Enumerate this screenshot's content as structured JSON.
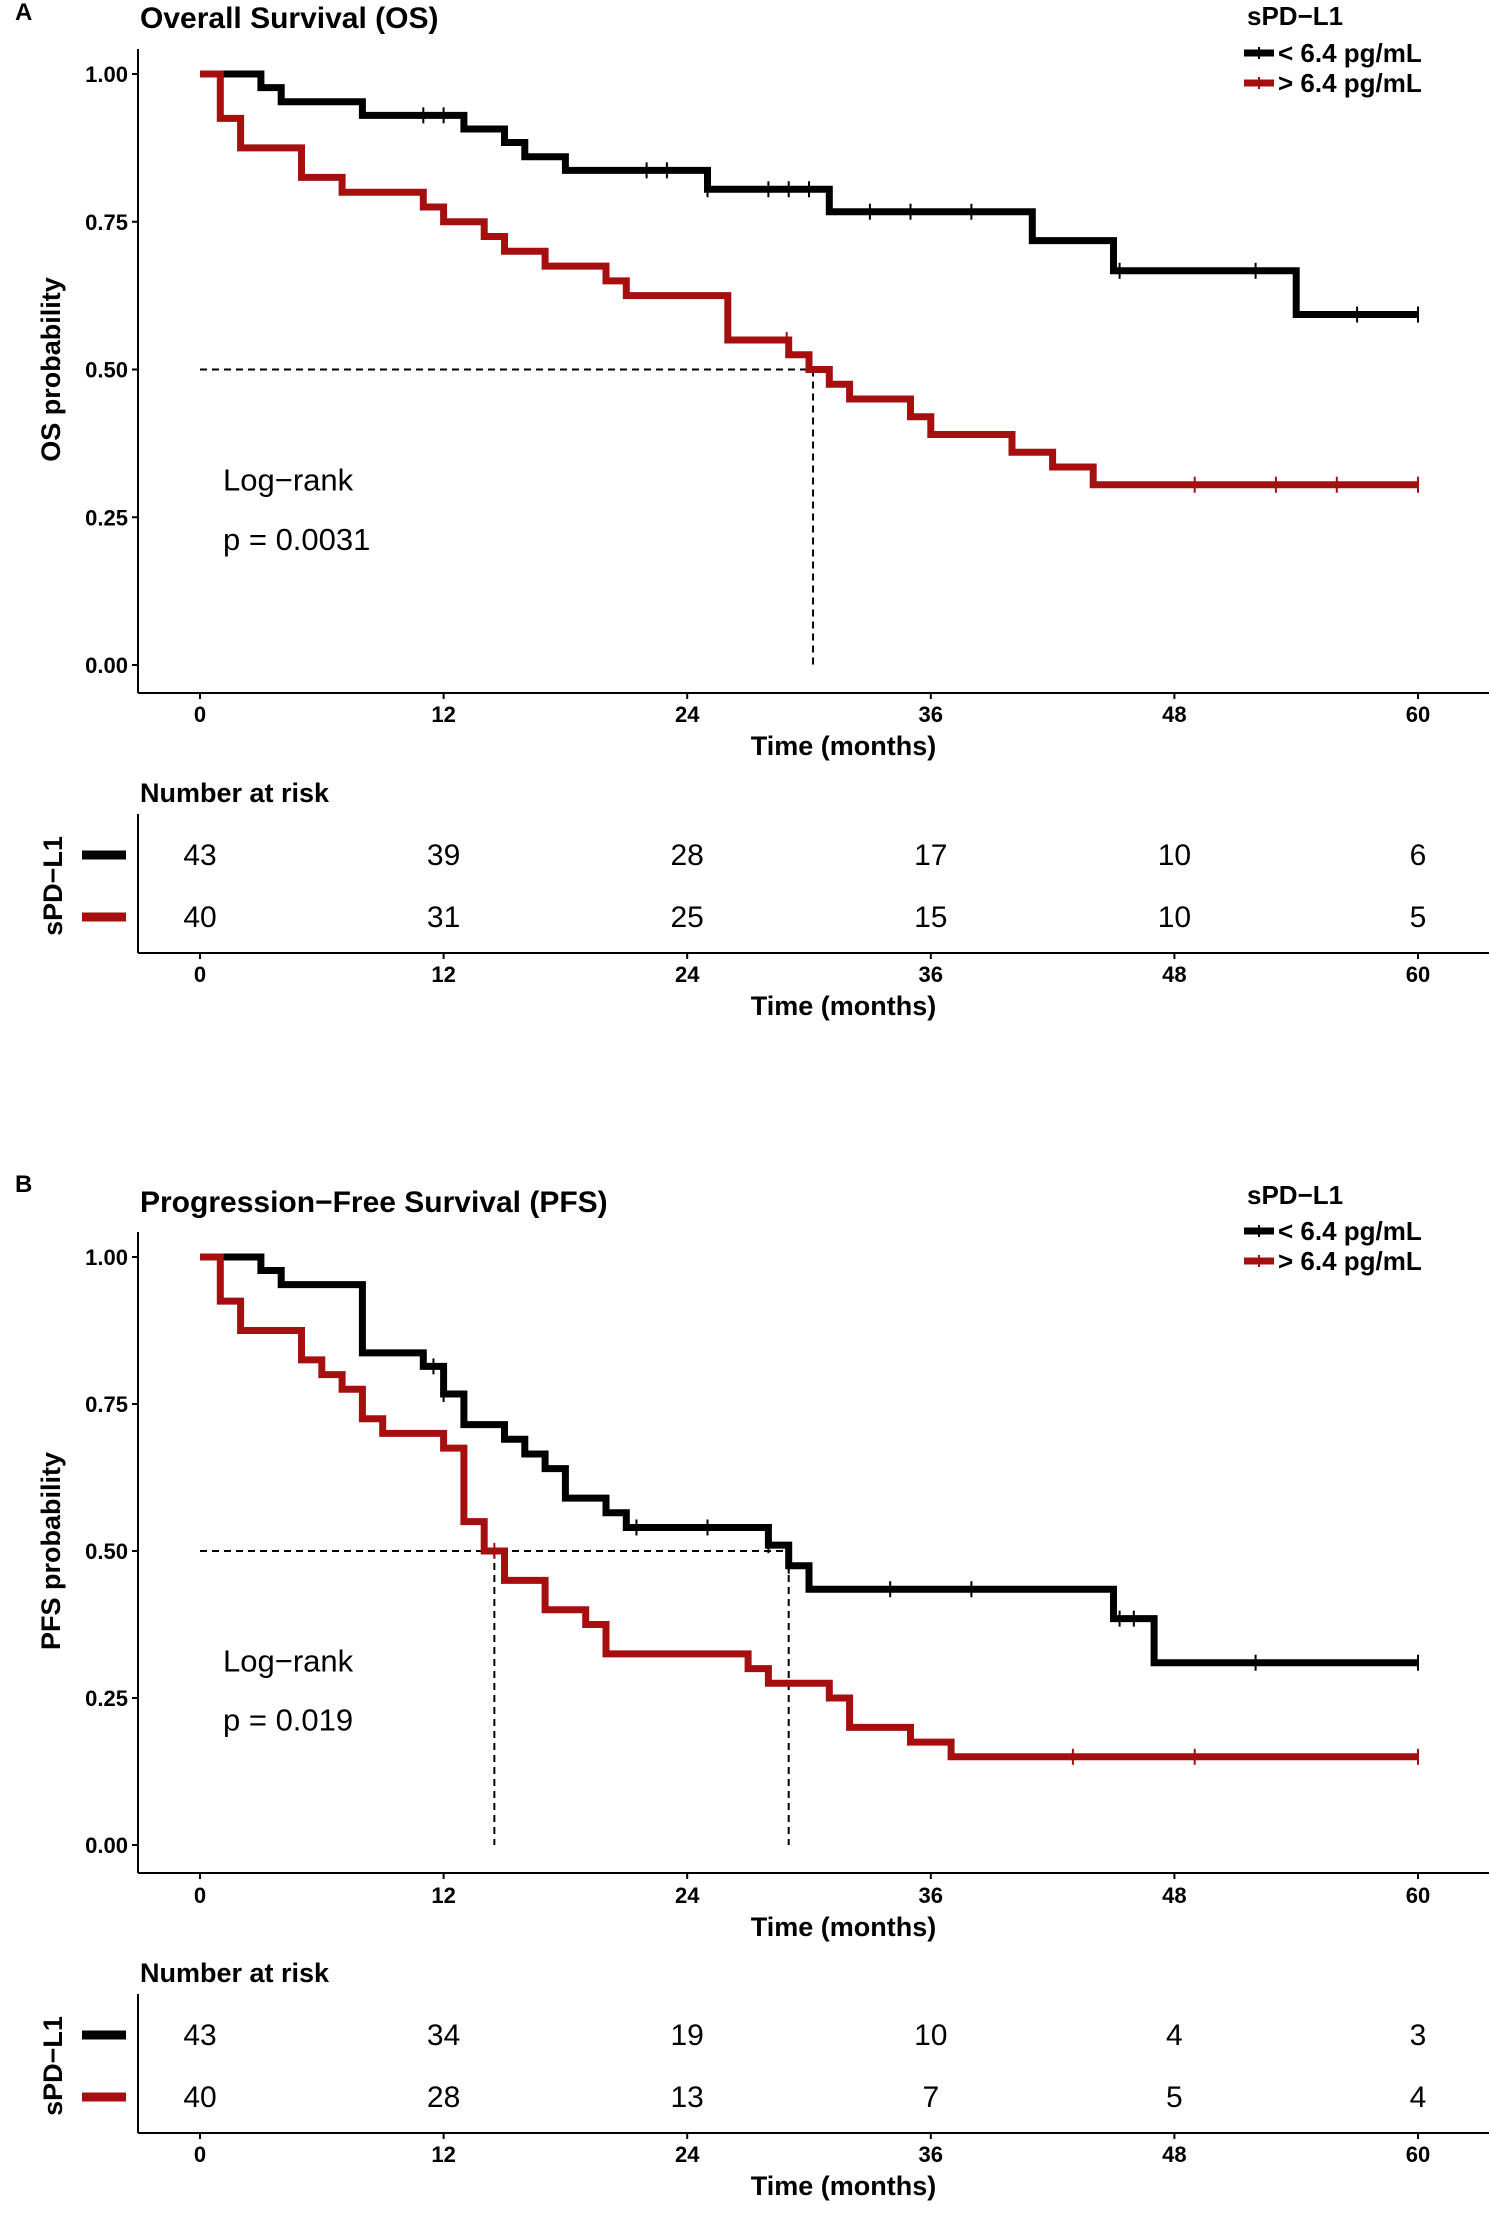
{
  "colors": {
    "low": "#000000",
    "high": "#a50f0f"
  },
  "legend_title": "sPD−L1",
  "legend_items": [
    "< 6.4 pg/mL",
    "> 6.4 pg/mL"
  ],
  "chart_data": [
    {
      "type": "line",
      "panel": "A",
      "title": "Overall Survival (OS)",
      "xlabel": "Time (months)",
      "ylabel": "OS probability",
      "xlim": [
        0,
        60
      ],
      "ylim": [
        0,
        1
      ],
      "xticks": [
        "0",
        "12",
        "24",
        "36",
        "48",
        "60"
      ],
      "yticks": [
        "0.00",
        "0.25",
        "0.50",
        "0.75",
        "1.00"
      ],
      "annotation": [
        "Log−rank",
        "p = 0.0031"
      ],
      "medians": [
        30.2
      ],
      "series": [
        {
          "name": "< 6.4 pg/mL",
          "steps": [
            [
              0,
              1
            ],
            [
              3,
              0.977
            ],
            [
              4,
              0.953
            ],
            [
              8,
              0.93
            ],
            [
              13,
              0.907
            ],
            [
              15,
              0.884
            ],
            [
              16,
              0.86
            ],
            [
              18,
              0.837
            ],
            [
              25,
              0.805
            ],
            [
              31,
              0.767
            ],
            [
              41,
              0.718
            ],
            [
              45,
              0.667
            ],
            [
              54,
              0.593
            ],
            [
              60,
              0.593
            ]
          ],
          "censored": [
            11,
            12,
            22,
            23,
            25,
            28,
            29,
            30,
            33,
            35,
            38,
            45.3,
            52,
            57,
            60
          ]
        },
        {
          "name": "> 6.4 pg/mL",
          "steps": [
            [
              0,
              1
            ],
            [
              1,
              0.925
            ],
            [
              2,
              0.875
            ],
            [
              5,
              0.825
            ],
            [
              7,
              0.8
            ],
            [
              11,
              0.775
            ],
            [
              12,
              0.75
            ],
            [
              14,
              0.725
            ],
            [
              15,
              0.7
            ],
            [
              17,
              0.675
            ],
            [
              20,
              0.65
            ],
            [
              21,
              0.625
            ],
            [
              26,
              0.55
            ],
            [
              29,
              0.525
            ],
            [
              30,
              0.5
            ],
            [
              31,
              0.475
            ],
            [
              32,
              0.45
            ],
            [
              35,
              0.42
            ],
            [
              36,
              0.39
            ],
            [
              40,
              0.36
            ],
            [
              42,
              0.335
            ],
            [
              44,
              0.305
            ],
            [
              60,
              0.305
            ]
          ],
          "censored": [
            28.9,
            49,
            53,
            56,
            60
          ]
        }
      ],
      "risk_table": {
        "title": "Number at risk",
        "strata_label": "sPD−L1",
        "rows": [
          [
            "43",
            "39",
            "28",
            "17",
            "10",
            "6"
          ],
          [
            "40",
            "31",
            "25",
            "15",
            "10",
            "5"
          ]
        ]
      }
    },
    {
      "type": "line",
      "panel": "B",
      "title": "Progression−Free Survival (PFS)",
      "xlabel": "Time (months)",
      "ylabel": "PFS probability",
      "xlim": [
        0,
        60
      ],
      "ylim": [
        0,
        1
      ],
      "xticks": [
        "0",
        "12",
        "24",
        "36",
        "48",
        "60"
      ],
      "yticks": [
        "0.00",
        "0.25",
        "0.50",
        "0.75",
        "1.00"
      ],
      "annotation": [
        "Log−rank",
        "p = 0.019"
      ],
      "medians": [
        14.5,
        29
      ],
      "series": [
        {
          "name": "< 6.4 pg/mL",
          "steps": [
            [
              0,
              1
            ],
            [
              3,
              0.977
            ],
            [
              4,
              0.953
            ],
            [
              8,
              0.837
            ],
            [
              11,
              0.814
            ],
            [
              12,
              0.767
            ],
            [
              13,
              0.715
            ],
            [
              15,
              0.69
            ],
            [
              16,
              0.665
            ],
            [
              17,
              0.64
            ],
            [
              18,
              0.59
            ],
            [
              20,
              0.565
            ],
            [
              21,
              0.54
            ],
            [
              28,
              0.51
            ],
            [
              29,
              0.475
            ],
            [
              30,
              0.435
            ],
            [
              45,
              0.385
            ],
            [
              47,
              0.31
            ],
            [
              60,
              0.31
            ]
          ],
          "censored": [
            11.5,
            12,
            21.5,
            25,
            28,
            29,
            34,
            38,
            45.3,
            46,
            52,
            60
          ]
        },
        {
          "name": "> 6.4 pg/mL",
          "steps": [
            [
              0,
              1
            ],
            [
              1,
              0.925
            ],
            [
              2,
              0.875
            ],
            [
              5,
              0.825
            ],
            [
              6,
              0.8
            ],
            [
              7,
              0.775
            ],
            [
              8,
              0.725
            ],
            [
              9,
              0.7
            ],
            [
              12,
              0.675
            ],
            [
              13,
              0.55
            ],
            [
              14,
              0.5
            ],
            [
              15,
              0.45
            ],
            [
              17,
              0.4
            ],
            [
              19,
              0.375
            ],
            [
              20,
              0.325
            ],
            [
              27,
              0.3
            ],
            [
              28,
              0.275
            ],
            [
              31,
              0.25
            ],
            [
              32,
              0.2
            ],
            [
              35,
              0.175
            ],
            [
              37,
              0.15
            ],
            [
              60,
              0.15
            ]
          ],
          "censored": [
            14.5,
            43,
            49,
            60
          ]
        }
      ],
      "risk_table": {
        "title": "Number at risk",
        "strata_label": "sPD−L1",
        "rows": [
          [
            "43",
            "34",
            "19",
            "10",
            "4",
            "3"
          ],
          [
            "40",
            "28",
            "13",
            "7",
            "5",
            "4"
          ]
        ]
      }
    }
  ]
}
